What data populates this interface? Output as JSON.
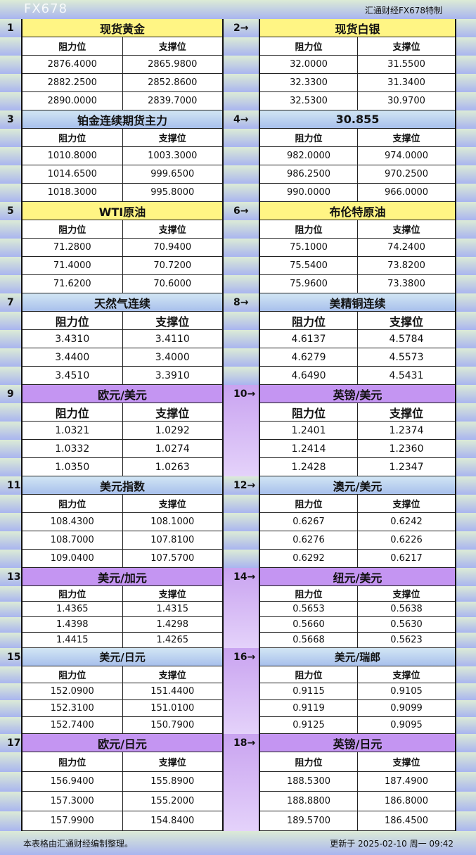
{
  "credit": "汇通财经FX678特制",
  "col_headers": [
    "阻力位",
    "支撑位"
  ],
  "colors": {
    "yellow": "#fff584",
    "blue": "#b8cef0",
    "purple": "#c495f2"
  },
  "blocks": [
    {
      "style": "yellow",
      "items": [
        {
          "num": "1",
          "title": "现货黄金",
          "rows": [
            [
              "2876.4000",
              "2865.9800"
            ],
            [
              "2882.2500",
              "2852.8600"
            ],
            [
              "2890.0000",
              "2839.7000"
            ]
          ]
        },
        {
          "num": "2→",
          "title": "现货白银",
          "rows": [
            [
              "32.0000",
              "31.5500"
            ],
            [
              "32.3300",
              "31.3400"
            ],
            [
              "32.5300",
              "30.9700"
            ]
          ]
        }
      ]
    },
    {
      "style": "blue",
      "items": [
        {
          "num": "3",
          "title": "铂金连续期货主力",
          "rows": [
            [
              "1010.8000",
              "1003.3000"
            ],
            [
              "1014.6500",
              "999.6500"
            ],
            [
              "1018.3000",
              "995.8000"
            ]
          ]
        },
        {
          "num": "4→",
          "title": "30.855",
          "rows": [
            [
              "982.0000",
              "974.0000"
            ],
            [
              "986.2500",
              "970.2500"
            ],
            [
              "990.0000",
              "966.0000"
            ]
          ]
        }
      ]
    },
    {
      "style": "yellow",
      "items": [
        {
          "num": "5",
          "title": "WTI原油",
          "rows": [
            [
              "71.2800",
              "70.9400"
            ],
            [
              "71.4000",
              "70.7200"
            ],
            [
              "71.6200",
              "70.6000"
            ]
          ]
        },
        {
          "num": "6→",
          "title": "布伦特原油",
          "rows": [
            [
              "75.1000",
              "74.2400"
            ],
            [
              "75.5400",
              "73.8200"
            ],
            [
              "75.9600",
              "73.3800"
            ]
          ]
        }
      ]
    },
    {
      "style": "blue",
      "items": [
        {
          "num": "7",
          "title": "天然气连续",
          "rows": [
            [
              "3.4310",
              "3.4110"
            ],
            [
              "3.4400",
              "3.4000"
            ],
            [
              "3.4510",
              "3.3910"
            ]
          ]
        },
        {
          "num": "8→",
          "title": "美精铜连续",
          "rows": [
            [
              "4.6137",
              "4.5784"
            ],
            [
              "4.6279",
              "4.5573"
            ],
            [
              "4.6490",
              "4.5431"
            ]
          ]
        }
      ]
    },
    {
      "style": "purple",
      "items": [
        {
          "num": "9",
          "title": "欧元/美元",
          "rows": [
            [
              "1.0321",
              "1.0292"
            ],
            [
              "1.0332",
              "1.0274"
            ],
            [
              "1.0350",
              "1.0263"
            ]
          ]
        },
        {
          "num": "10→",
          "title": "英镑/美元",
          "rows": [
            [
              "1.2401",
              "1.2374"
            ],
            [
              "1.2414",
              "1.2360"
            ],
            [
              "1.2428",
              "1.2347"
            ]
          ]
        }
      ]
    },
    {
      "style": "blue",
      "items": [
        {
          "num": "11",
          "title": "美元指数",
          "rows": [
            [
              "108.4300",
              "108.1000"
            ],
            [
              "108.7000",
              "107.8100"
            ],
            [
              "109.0400",
              "107.5700"
            ]
          ]
        },
        {
          "num": "12→",
          "title": "澳元/美元",
          "rows": [
            [
              "0.6267",
              "0.6242"
            ],
            [
              "0.6276",
              "0.6226"
            ],
            [
              "0.6292",
              "0.6217"
            ]
          ]
        }
      ]
    },
    {
      "style": "purple",
      "items": [
        {
          "num": "13",
          "title": "美元/加元",
          "rows": [
            [
              "1.4365",
              "1.4315"
            ],
            [
              "1.4398",
              "1.4298"
            ],
            [
              "1.4415",
              "1.4265"
            ]
          ]
        },
        {
          "num": "14→",
          "title": "纽元/美元",
          "rows": [
            [
              "0.5653",
              "0.5638"
            ],
            [
              "0.5660",
              "0.5630"
            ],
            [
              "0.5668",
              "0.5623"
            ]
          ]
        }
      ]
    },
    {
      "style": "blue",
      "items": [
        {
          "num": "15",
          "title": "美元/日元",
          "rows": [
            [
              "152.0900",
              "151.4400"
            ],
            [
              "152.3100",
              "151.0100"
            ],
            [
              "152.7400",
              "150.7900"
            ]
          ]
        },
        {
          "num": "16→",
          "title": "美元/瑞郎",
          "rows": [
            [
              "0.9115",
              "0.9105"
            ],
            [
              "0.9119",
              "0.9099"
            ],
            [
              "0.9125",
              "0.9095"
            ]
          ]
        }
      ]
    },
    {
      "style": "purple",
      "items": [
        {
          "num": "17",
          "title": "欧元/日元",
          "rows": [
            [
              "156.9400",
              "155.8900"
            ],
            [
              "157.3000",
              "155.2000"
            ],
            [
              "157.9900",
              "154.8400"
            ]
          ]
        },
        {
          "num": "18→",
          "title": "英镑/日元",
          "rows": [
            [
              "188.5300",
              "187.4900"
            ],
            [
              "188.8800",
              "186.8000"
            ],
            [
              "189.5700",
              "186.4500"
            ]
          ]
        }
      ]
    }
  ],
  "footer": {
    "note": "本表格由汇通财经编制整理。",
    "updated": "更新于 2025-02-10 周一 09:42"
  },
  "watermark": "FX678"
}
